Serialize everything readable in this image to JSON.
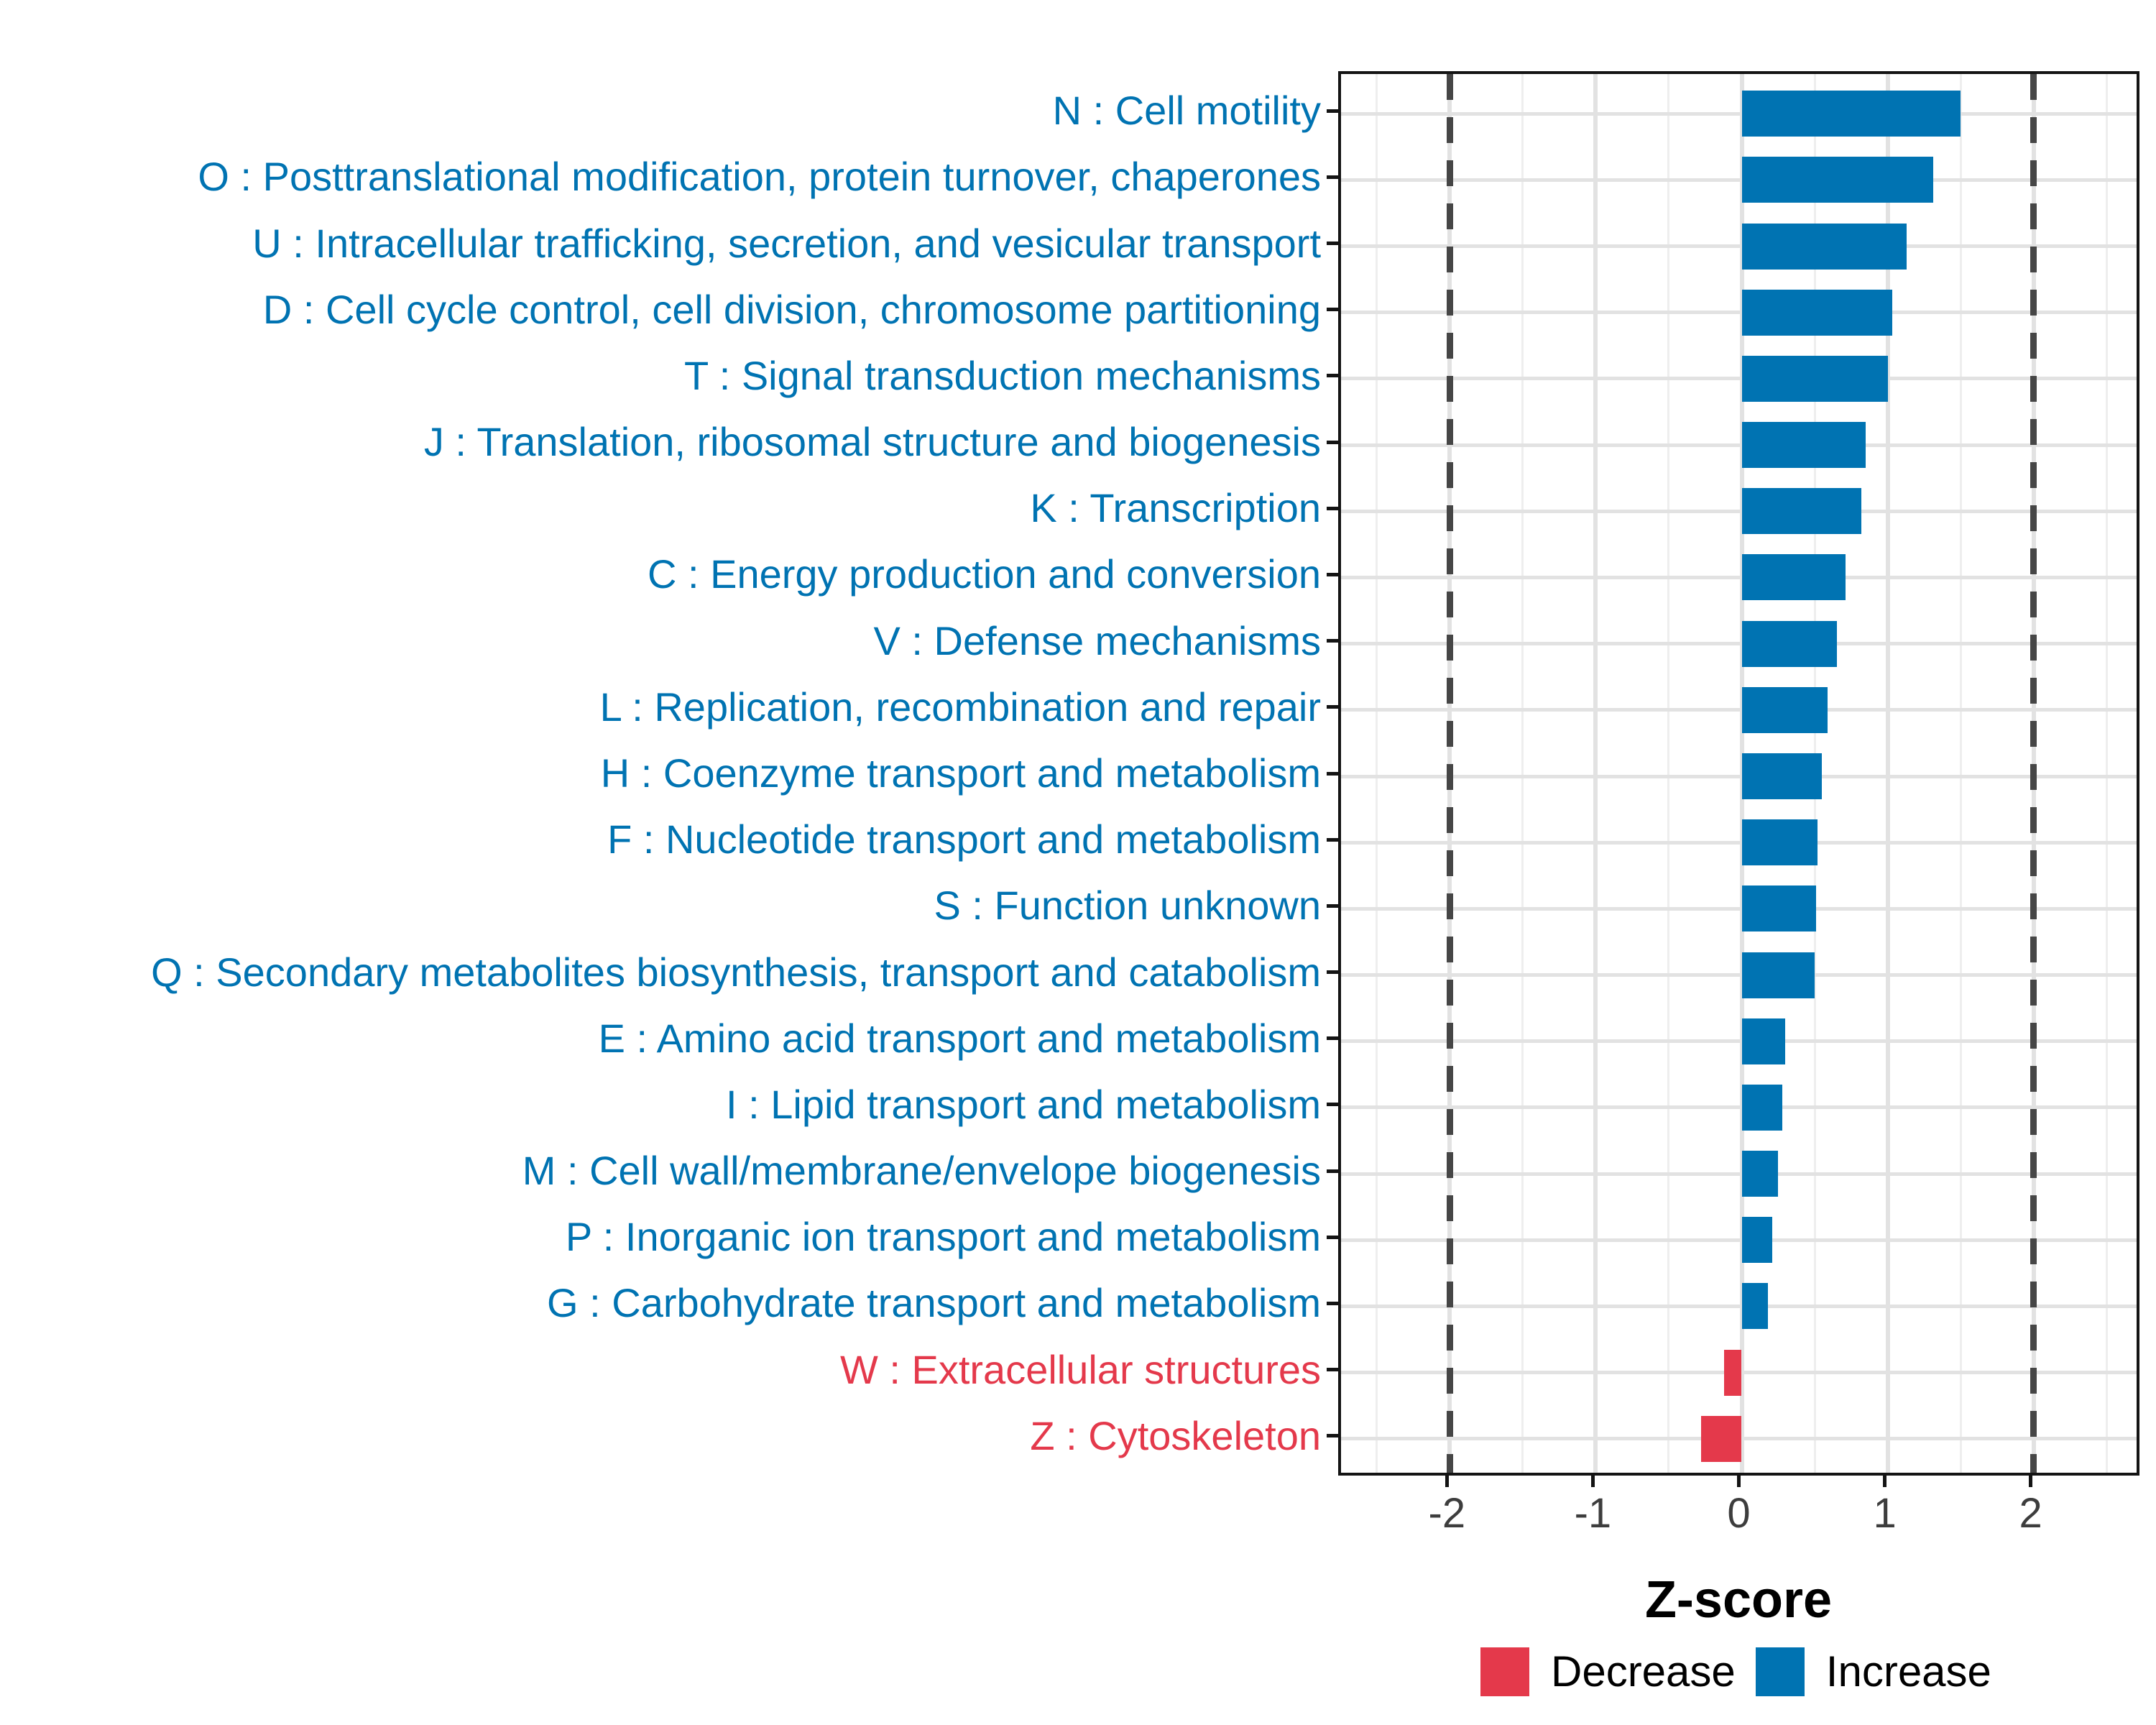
{
  "chart_data": {
    "type": "bar",
    "orientation": "horizontal",
    "xlabel": "Z-score",
    "xlim": [
      -2.745,
      2.745
    ],
    "x_ticks": [
      "-2",
      "-1",
      "0",
      "1",
      "2"
    ],
    "x_tick_values": [
      -2,
      -1,
      0,
      1,
      2
    ],
    "x_minor_gridlines": [
      -2.5,
      -1.5,
      -0.5,
      0.5,
      1.5,
      2.5
    ],
    "dashed_reference_lines": [
      -2,
      2
    ],
    "grid": "on",
    "legend_position": "bottom-right",
    "colors": {
      "increase": "#0073B2",
      "decrease": "#E4394B"
    },
    "legend": [
      {
        "label": "Decrease",
        "color": "#E4394B"
      },
      {
        "label": "Increase",
        "color": "#0073B2"
      }
    ],
    "categories": [
      "N : Cell motility",
      "O : Posttranslational modification, protein turnover, chaperones",
      "U : Intracellular trafficking, secretion, and vesicular transport",
      "D : Cell cycle control, cell division, chromosome partitioning",
      "T : Signal transduction mechanisms",
      "J : Translation, ribosomal structure and biogenesis",
      "K : Transcription",
      "C : Energy production and conversion",
      "V : Defense mechanisms",
      "L : Replication, recombination and repair",
      "H : Coenzyme transport and metabolism",
      "F : Nucleotide transport and metabolism",
      "S : Function unknown",
      "Q : Secondary metabolites biosynthesis, transport and catabolism",
      "E : Amino acid transport and metabolism",
      "I : Lipid transport and metabolism",
      "M : Cell wall/membrane/envelope biogenesis",
      "P : Inorganic ion transport and metabolism",
      "G : Carbohydrate transport and metabolism",
      "W : Extracellular structures",
      "Z : Cytoskeleton"
    ],
    "values": [
      1.5,
      1.31,
      1.13,
      1.03,
      1.0,
      0.85,
      0.82,
      0.71,
      0.65,
      0.59,
      0.55,
      0.52,
      0.51,
      0.5,
      0.3,
      0.28,
      0.25,
      0.21,
      0.18,
      -0.12,
      -0.28
    ]
  }
}
